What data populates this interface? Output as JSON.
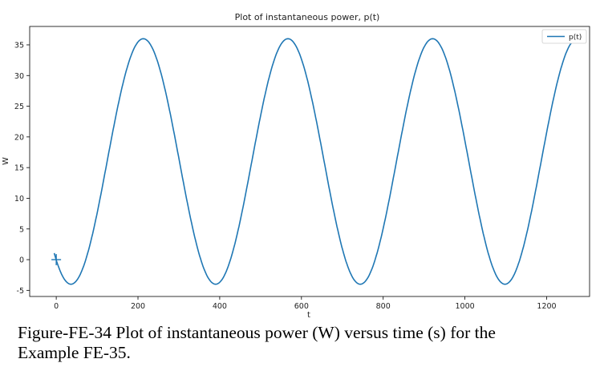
{
  "chart_data": {
    "type": "line",
    "title": "Plot of instantaneous power, p(t)",
    "xlabel": "t",
    "ylabel": "W",
    "xlim": [
      -65,
      1305
    ],
    "ylim": [
      -6,
      38
    ],
    "xticks": [
      0,
      200,
      400,
      600,
      800,
      1000,
      1200
    ],
    "yticks": [
      -5,
      0,
      5,
      10,
      15,
      20,
      25,
      30,
      35
    ],
    "legend_position": "top-right",
    "grid": false,
    "series": [
      {
        "name": "p(t)",
        "color": "#1f77b4",
        "function": "16 - 20*cos(2*pi*(t - 36)/354)",
        "t_range": [
          -5,
          1265
        ],
        "x": [
          -5,
          0,
          36,
          80,
          125,
          170,
          213,
          260,
          305,
          350,
          390,
          435,
          480,
          525,
          567,
          610,
          655,
          700,
          744,
          790,
          835,
          880,
          921,
          965,
          1010,
          1055,
          1098,
          1145,
          1190,
          1235,
          1265
        ],
        "y": [
          1.3,
          -0.2,
          -4.0,
          -1.0,
          5.8,
          20.1,
          36.0,
          30.5,
          17.2,
          2.6,
          -3.9,
          1.0,
          12.6,
          26.2,
          36.0,
          31.6,
          19.8,
          5.9,
          -4.0,
          0.6,
          10.2,
          24.6,
          36.0,
          32.2,
          20.9,
          6.8,
          -4.0,
          0.7,
          10.6,
          25.1,
          33.6
        ]
      }
    ],
    "marker": {
      "x": 0,
      "y": 0,
      "symbol": "+"
    }
  },
  "caption": {
    "line1": "Figure-FE-34 Plot of instantaneous power (W) versus time (s) for the",
    "line2": "Example FE-35."
  }
}
